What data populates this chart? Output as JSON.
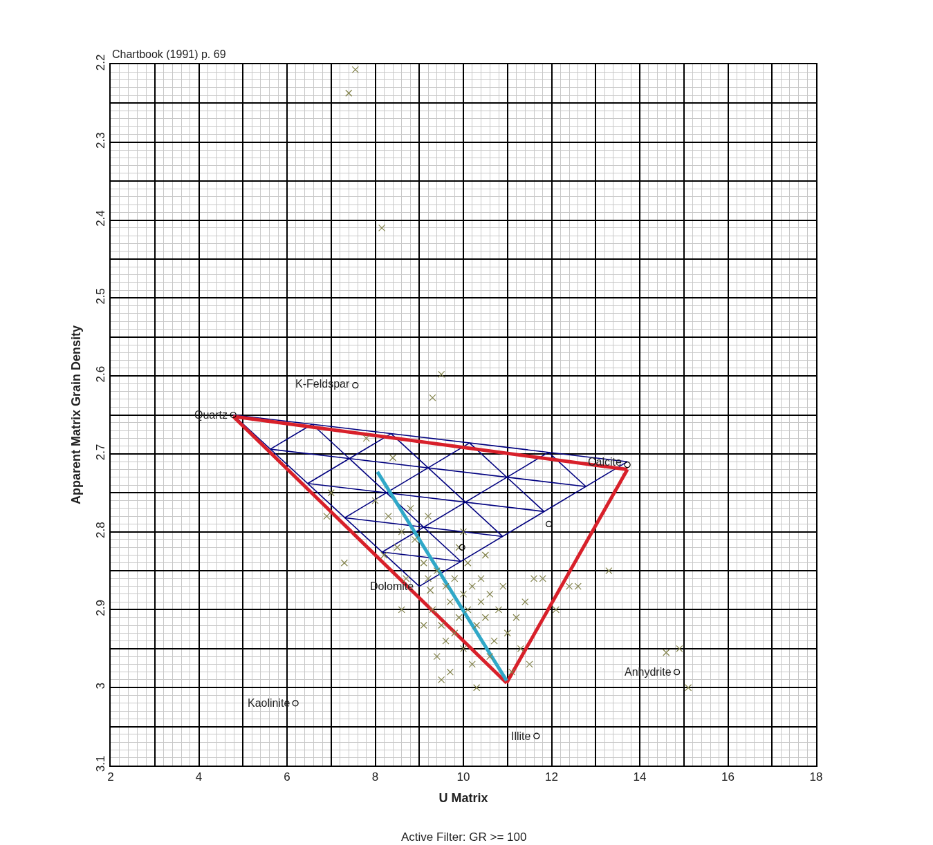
{
  "chart_data": {
    "type": "scatter",
    "xlabel": "U Matrix",
    "ylabel": "Apparent Matrix Grain Density",
    "annotations": [
      "Chartbook (1991) p. 69",
      "Active Filter: GR >= 100",
      {
        "text": "Quartz",
        "x": 4.78,
        "y": 2.65
      },
      {
        "text": "K-Feldspar",
        "x": 7.55,
        "y": 2.61
      },
      {
        "text": "Calcite",
        "x": 13.72,
        "y": 2.71
      },
      {
        "text": "Dolomite",
        "x": 9.0,
        "y": 2.87
      },
      {
        "text": "Anhydrite",
        "x": 14.84,
        "y": 2.98
      },
      {
        "text": "Kaolinite",
        "x": 6.19,
        "y": 3.02
      },
      {
        "text": "Illite",
        "x": 11.66,
        "y": 3.062
      }
    ],
    "xlim": [
      2,
      18
    ],
    "ylim": [
      3.1,
      2.2
    ],
    "xticks": [
      2,
      {
        "value": 3,
        "label": null
      },
      4,
      {
        "value": 5,
        "label": null
      },
      6,
      {
        "value": 7,
        "label": null
      },
      8,
      {
        "value": 9,
        "label": null
      },
      10,
      {
        "value": 11,
        "label": null
      },
      12,
      {
        "value": 13,
        "label": null
      },
      14,
      {
        "value": 15,
        "label": null
      },
      16,
      {
        "value": 17,
        "label": null
      },
      18
    ],
    "yticks": [
      2.2,
      {
        "value": 2.25,
        "label": null
      },
      2.3,
      {
        "value": 2.35,
        "label": null
      },
      2.4,
      {
        "value": 2.45,
        "label": null
      },
      2.5,
      {
        "value": 2.55,
        "label": null
      },
      2.6,
      {
        "value": 2.65,
        "label": null
      },
      2.7,
      {
        "value": 2.75,
        "label": null
      },
      2.8,
      {
        "value": 2.85,
        "label": null
      },
      2.9,
      {
        "value": 2.95,
        "label": null
      },
      3,
      {
        "value": 3.05,
        "label": null
      },
      3.1
    ],
    "grid": true,
    "series": [
      {
        "marker": "cross",
        "color": "#808048",
        "x": [
          7.55,
          7.4,
          8.15,
          9.5,
          9.3,
          7.8,
          8.4,
          6.9,
          7.0,
          7.3,
          8.0,
          8.3,
          8.6,
          8.8,
          8.2,
          8.5,
          8.9,
          9.1,
          8.7,
          9.25,
          9.2,
          9.4,
          9.3,
          9.6,
          9.5,
          9.7,
          9.8,
          9.9,
          10.0,
          10.1,
          9.6,
          9.8,
          10.2,
          10.3,
          10.4,
          10.0,
          10.5,
          10.6,
          10.2,
          9.4,
          9.7,
          10.7,
          10.8,
          10.4,
          10.1,
          9.9,
          10.6,
          11.0,
          10.9,
          11.2,
          11.4,
          11.6,
          11.3,
          11.8,
          12.1,
          12.4,
          12.6,
          13.3,
          14.6,
          14.9,
          15.1,
          11.1,
          10.3,
          9.5,
          9.1,
          10.0,
          8.6,
          9.2,
          10.5,
          11.5
        ],
        "values": [
          2.207,
          2.237,
          2.41,
          2.598,
          2.628,
          2.68,
          2.705,
          2.78,
          2.75,
          2.84,
          2.76,
          2.78,
          2.8,
          2.77,
          2.83,
          2.82,
          2.81,
          2.84,
          2.86,
          2.875,
          2.86,
          2.85,
          2.9,
          2.87,
          2.92,
          2.89,
          2.86,
          2.91,
          2.88,
          2.9,
          2.94,
          2.93,
          2.87,
          2.92,
          2.89,
          2.95,
          2.91,
          2.88,
          2.97,
          2.96,
          2.98,
          2.94,
          2.9,
          2.86,
          2.84,
          2.82,
          2.96,
          2.93,
          2.87,
          2.91,
          2.89,
          2.86,
          2.95,
          2.86,
          2.9,
          2.87,
          2.87,
          2.85,
          2.955,
          2.95,
          3.0,
          2.98,
          3.0,
          2.99,
          2.92,
          2.8,
          2.9,
          2.78,
          2.83,
          2.97
        ]
      },
      {
        "marker": "circle",
        "color": "#000000",
        "x": [
          4.78,
          7.55,
          13.72,
          9.97,
          11.94,
          14.84,
          6.19,
          11.66
        ],
        "values": [
          2.65,
          2.612,
          2.714,
          2.82,
          2.79,
          2.98,
          3.02,
          3.062
        ]
      },
      {
        "type": "line",
        "color": "#00007f",
        "x": [
          4.78,
          13.72
        ],
        "values": [
          2.65,
          2.71
        ]
      },
      {
        "type": "line",
        "color": "#00007f",
        "x": [
          13.72,
          9.0
        ],
        "values": [
          2.71,
          2.87
        ]
      },
      {
        "type": "line",
        "color": "#00007f",
        "x": [
          9.0,
          4.78
        ],
        "values": [
          2.87,
          2.65
        ]
      },
      {
        "type": "line",
        "color": "#00007f",
        "x": [
          5.62,
          12.78
        ],
        "values": [
          2.694,
          2.742
        ]
      },
      {
        "type": "line",
        "color": "#00007f",
        "x": [
          6.47,
          11.83
        ],
        "values": [
          2.738,
          2.774
        ]
      },
      {
        "type": "line",
        "color": "#00007f",
        "x": [
          7.31,
          10.89
        ],
        "values": [
          2.782,
          2.806
        ]
      },
      {
        "type": "line",
        "color": "#00007f",
        "x": [
          8.16,
          9.94
        ],
        "values": [
          2.826,
          2.838
        ]
      },
      {
        "type": "line",
        "color": "#00007f",
        "x": [
          6.57,
          9.94
        ],
        "values": [
          2.662,
          2.838
        ]
      },
      {
        "type": "line",
        "color": "#00007f",
        "x": [
          8.36,
          10.89
        ],
        "values": [
          2.674,
          2.806
        ]
      },
      {
        "type": "line",
        "color": "#00007f",
        "x": [
          10.14,
          11.83
        ],
        "values": [
          2.686,
          2.774
        ]
      },
      {
        "type": "line",
        "color": "#00007f",
        "x": [
          11.93,
          12.78
        ],
        "values": [
          2.698,
          2.742
        ]
      },
      {
        "type": "line",
        "color": "#00007f",
        "x": [
          6.57,
          5.62
        ],
        "values": [
          2.662,
          2.694
        ]
      },
      {
        "type": "line",
        "color": "#00007f",
        "x": [
          8.36,
          6.47
        ],
        "values": [
          2.674,
          2.738
        ]
      },
      {
        "type": "line",
        "color": "#00007f",
        "x": [
          10.14,
          7.31
        ],
        "values": [
          2.686,
          2.782
        ]
      },
      {
        "type": "line",
        "color": "#00007f",
        "x": [
          11.93,
          8.16
        ],
        "values": [
          2.698,
          2.826
        ]
      },
      {
        "type": "line",
        "color": "#d8202a",
        "x": [
          4.78,
          13.72
        ],
        "values": [
          2.652,
          2.72
        ]
      },
      {
        "type": "line",
        "color": "#d8202a",
        "x": [
          13.72,
          10.98
        ],
        "values": [
          2.72,
          2.994
        ]
      },
      {
        "type": "line",
        "color": "#d8202a",
        "x": [
          10.98,
          4.78
        ],
        "values": [
          2.994,
          2.652
        ]
      },
      {
        "type": "line",
        "color": "#30a8c8",
        "x": [
          8.05,
          10.98
        ],
        "values": [
          2.723,
          2.991
        ]
      }
    ]
  }
}
